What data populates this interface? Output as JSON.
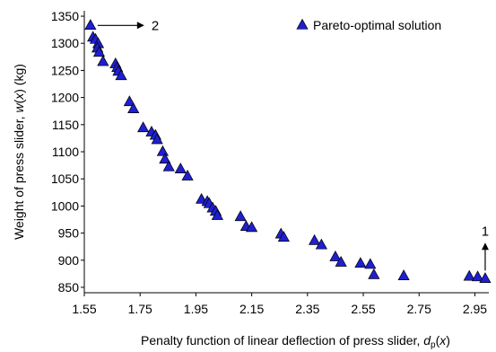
{
  "chart_data": {
    "type": "scatter",
    "xlim": [
      1.55,
      3.0
    ],
    "ylim": [
      840,
      1360
    ],
    "x_ticks": [
      1.55,
      1.75,
      1.95,
      2.15,
      2.35,
      2.55,
      2.75,
      2.95
    ],
    "x_tick_labels": [
      "1.55",
      "1.75",
      "1.95",
      "2.15",
      "2.35",
      "2.55",
      "2.75",
      "2.95"
    ],
    "y_ticks": [
      850,
      900,
      950,
      1000,
      1050,
      1100,
      1150,
      1200,
      1250,
      1300,
      1350
    ],
    "y_tick_labels": [
      "850",
      "900",
      "950",
      "1000",
      "1050",
      "1100",
      "1150",
      "1200",
      "1250",
      "1300",
      "1350"
    ],
    "grid": false,
    "legend_position": "top-right",
    "marker_color": "#1f1fd0",
    "xlabel": {
      "prefix": "Penalty function of linear deflection of press slider, ",
      "var": "d",
      "sub": "p",
      "suffix_open": "(",
      "arg": "x",
      "suffix_close": ")"
    },
    "ylabel": {
      "prefix": "Weight of press slider, ",
      "var": "w",
      "suffix_open": "(",
      "arg": "x",
      "suffix_close": ") (kg)"
    },
    "series": [
      {
        "name": "Pareto-optimal solution",
        "x": [
          1.572,
          1.581,
          1.59,
          1.6,
          1.597,
          1.603,
          1.617,
          1.662,
          1.668,
          1.672,
          1.682,
          1.712,
          1.726,
          1.761,
          1.791,
          1.805,
          1.811,
          1.831,
          1.839,
          1.853,
          1.895,
          1.92,
          1.97,
          1.991,
          1.998,
          2.01,
          2.021,
          2.027,
          2.11,
          2.13,
          2.15,
          2.255,
          2.265,
          2.375,
          2.4,
          2.45,
          2.47,
          2.54,
          2.575,
          2.588,
          2.695,
          2.93,
          2.96,
          2.987
        ],
        "y": [
          1333,
          1311,
          1307,
          1299,
          1291,
          1283,
          1266,
          1262,
          1255,
          1248,
          1240,
          1192,
          1179,
          1144,
          1136,
          1130,
          1122,
          1100,
          1086,
          1072,
          1068,
          1055,
          1012,
          1008,
          1004,
          996,
          990,
          982,
          980,
          962,
          960,
          948,
          942,
          936,
          928,
          906,
          896,
          894,
          892,
          873,
          871,
          870,
          869,
          866
        ]
      }
    ],
    "annotations": [
      {
        "text": "2",
        "x": 1.572,
        "y": 1333,
        "arrow": "right"
      },
      {
        "text": "1",
        "x": 2.987,
        "y": 866,
        "arrow": "up"
      }
    ]
  }
}
